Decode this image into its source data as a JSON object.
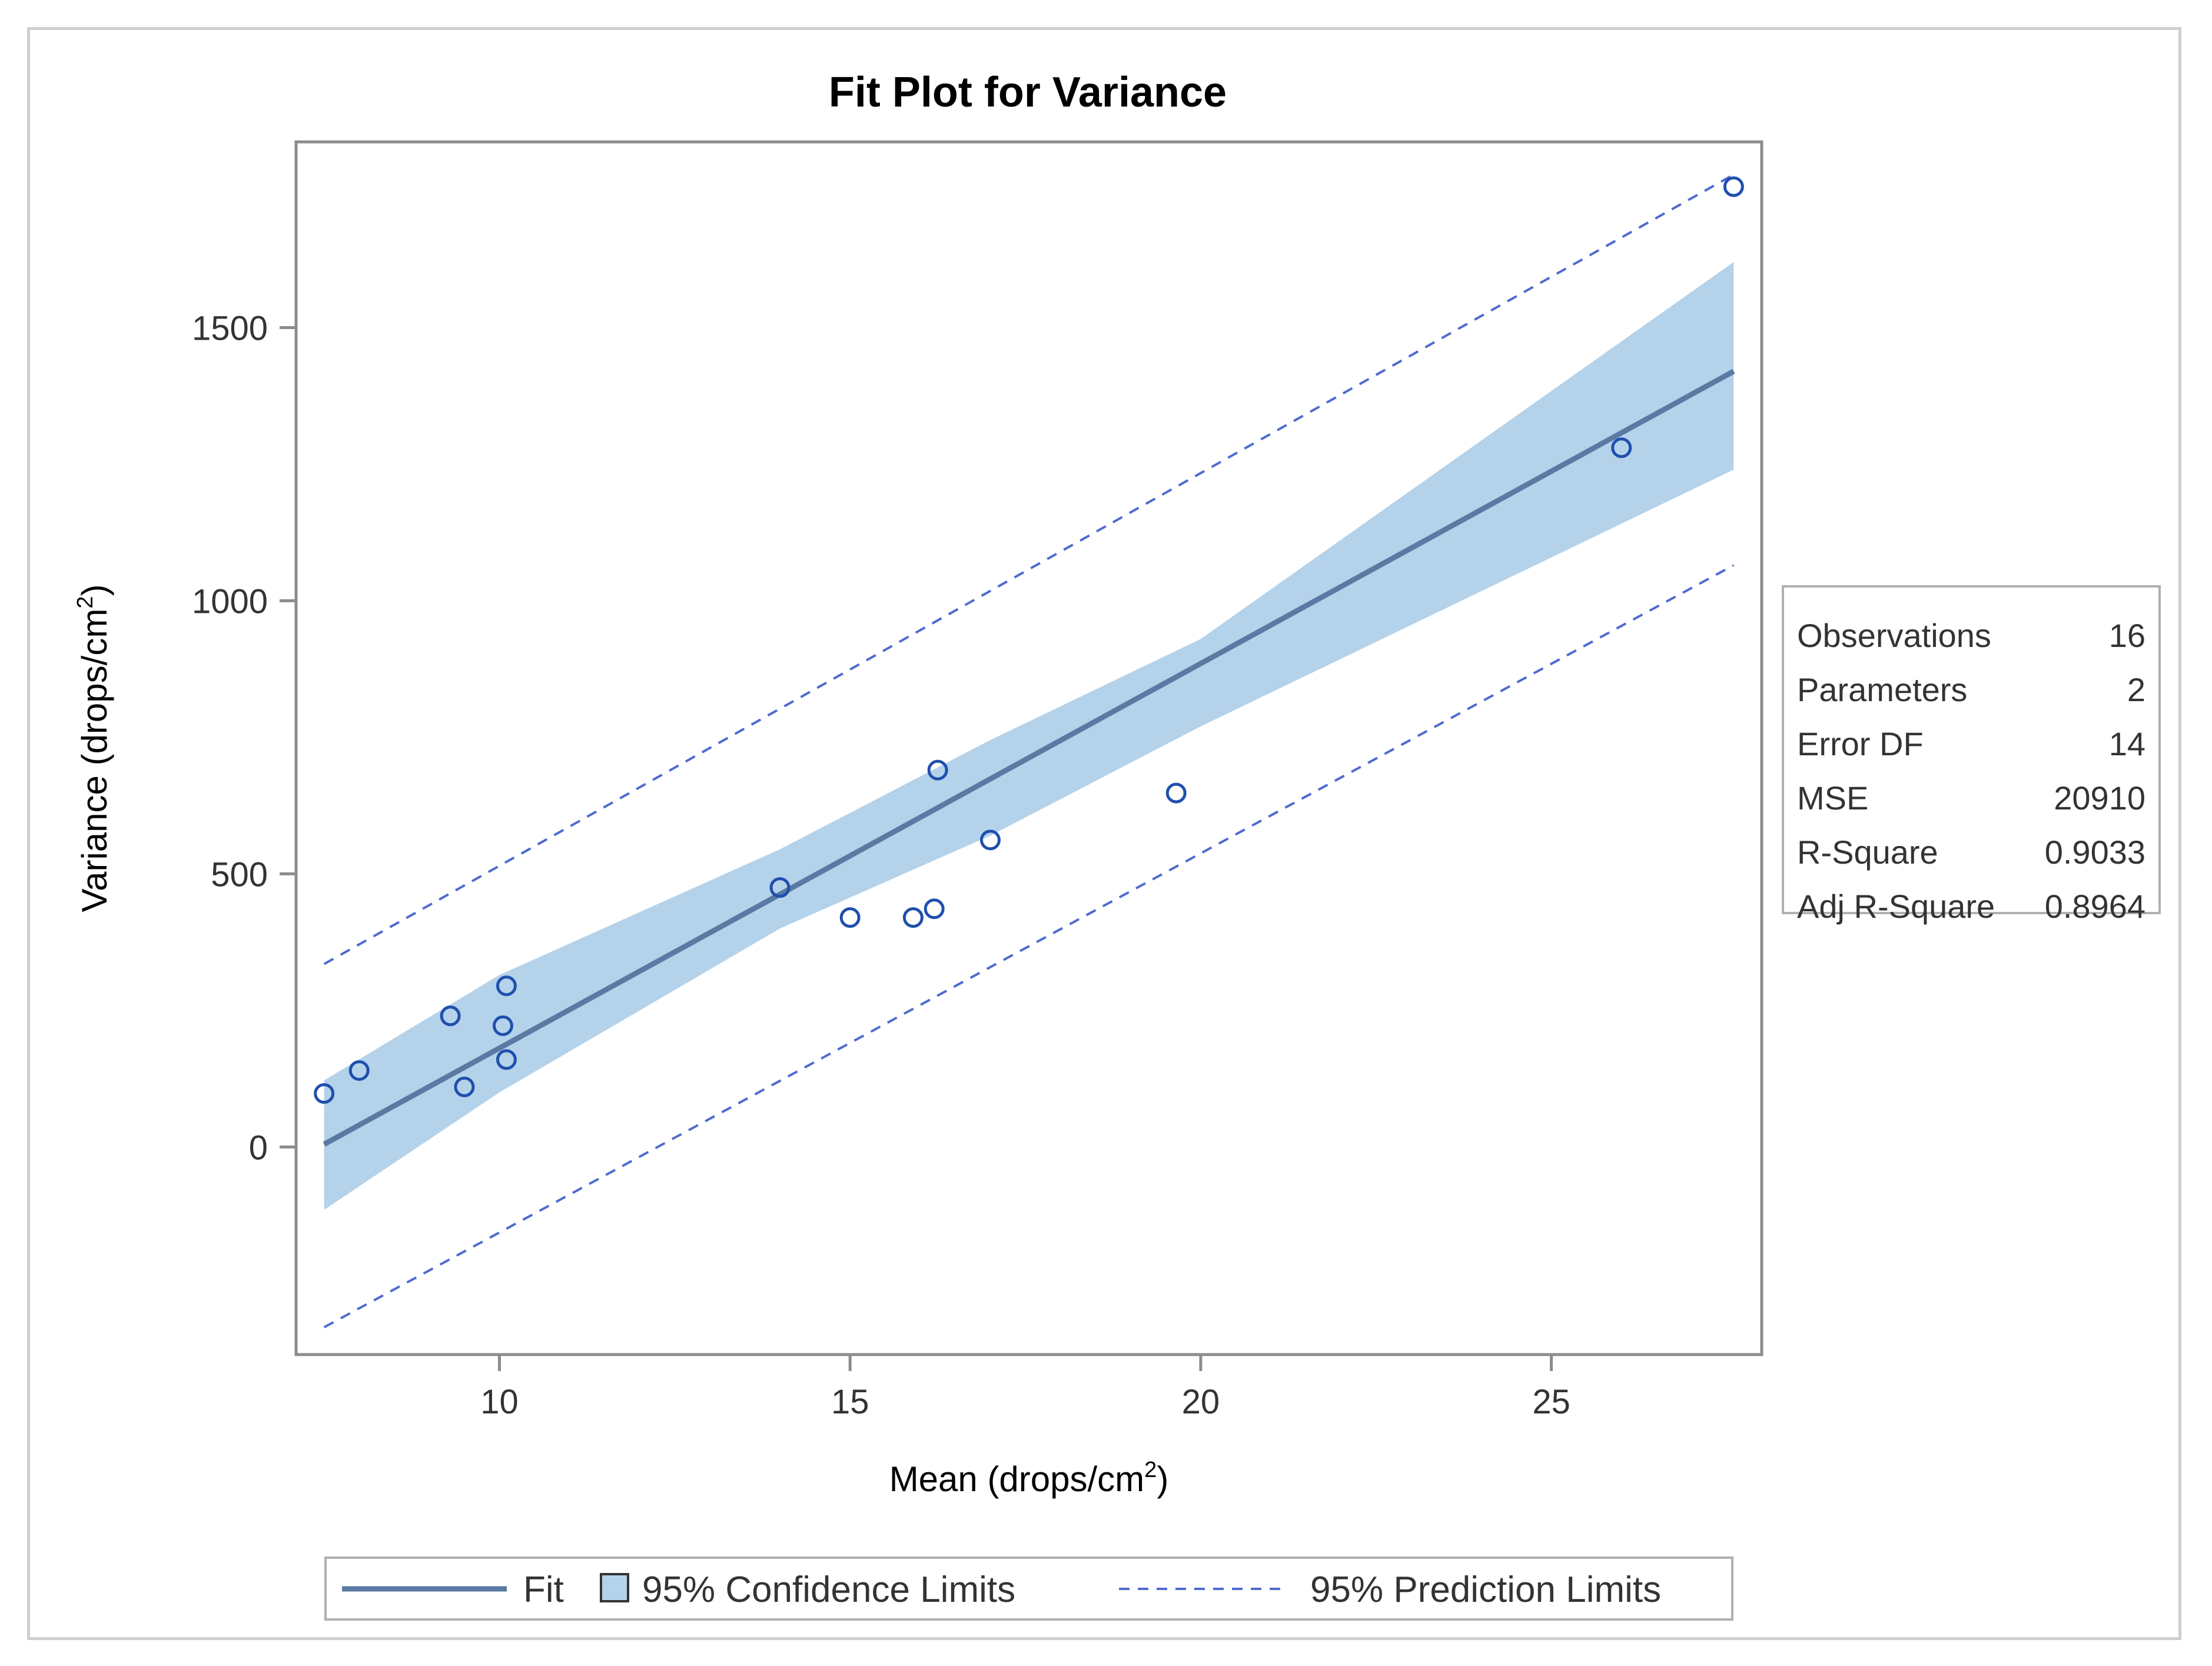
{
  "chart_data": {
    "type": "scatter",
    "title": "Fit Plot for Variance",
    "xlabel": "Mean (drops/cm²)",
    "ylabel": "Variance (drops/cm²)",
    "xlabel_base": "Mean (drops/cm",
    "ylabel_base": "Variance (drops/cm",
    "label_sup": "2",
    "label_close": ")",
    "xlim": [
      7.1,
      28.0
    ],
    "ylim": [
      -380,
      1840
    ],
    "x_ticks": [
      10,
      15,
      20,
      25
    ],
    "y_ticks": [
      0,
      500,
      1000,
      1500
    ],
    "x_tick_labels": [
      "10",
      "15",
      "20",
      "25"
    ],
    "y_tick_labels": [
      "0",
      "500",
      "1000",
      "1500"
    ],
    "grid": false,
    "observations": {
      "name": "Observations",
      "x": [
        7.5,
        8.0,
        9.3,
        9.5,
        10.05,
        10.1,
        10.1,
        14.0,
        15.0,
        15.9,
        16.2,
        16.25,
        17.0,
        19.65,
        26.0,
        27.6
      ],
      "y": [
        98,
        140,
        240,
        110,
        222,
        160,
        295,
        475,
        420,
        420,
        436,
        690,
        562,
        648,
        1280,
        1758
      ]
    },
    "fit": {
      "name": "Fit",
      "x": [
        7.5,
        27.6
      ],
      "y": [
        5,
        1420
      ]
    },
    "confidence_limits": {
      "name": "95% Confidence Limits",
      "x": [
        7.5,
        10.0,
        14.0,
        17.0,
        20.0,
        27.6
      ],
      "upper": [
        122,
        315,
        545,
        745,
        930,
        1620
      ],
      "lower": [
        -115,
        100,
        400,
        570,
        770,
        1240
      ]
    },
    "prediction_limits": {
      "name": "95% Prediction Limits",
      "x": [
        7.5,
        27.6
      ],
      "upper": [
        335,
        1780
      ],
      "lower": [
        -330,
        1065
      ]
    },
    "legend": {
      "placement": "bottom",
      "items": [
        "Fit",
        "95% Confidence Limits",
        "95% Prediction Limits"
      ]
    },
    "stats_table": [
      {
        "label": "Observations",
        "value": "16"
      },
      {
        "label": "Parameters",
        "value": "2"
      },
      {
        "label": "Error DF",
        "value": "14"
      },
      {
        "label": "MSE",
        "value": "20910"
      },
      {
        "label": "R-Square",
        "value": "0.9033"
      },
      {
        "label": "Adj R-Square",
        "value": "0.8964"
      }
    ]
  },
  "colors": {
    "band_fill": "#b4d2ea",
    "fit_line": "#5a7aa3",
    "marker": "#1f4fad",
    "pred_line": "#4e6bcf",
    "axis": "#8c8c8c",
    "text": "#333333"
  }
}
